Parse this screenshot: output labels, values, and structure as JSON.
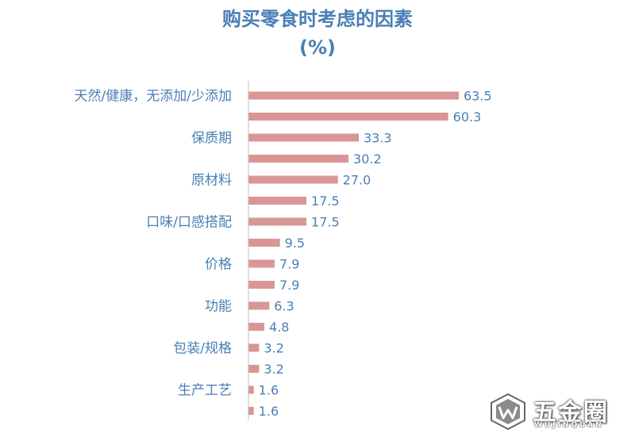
{
  "chart_data": {
    "type": "bar",
    "orientation": "horizontal",
    "title_lines": [
      "购买零食时考虑的因素",
      "(%)"
    ],
    "categories": [
      "天然/健康，无添加/少添加",
      "",
      "保质期",
      "",
      "原材料",
      "",
      "口味/口感搭配",
      "",
      "价格",
      "",
      "功能",
      "",
      "包装/规格",
      "",
      "生产工艺",
      ""
    ],
    "values": [
      63.5,
      60.3,
      33.3,
      30.2,
      27.0,
      17.5,
      17.5,
      9.5,
      7.9,
      7.9,
      6.3,
      4.8,
      3.2,
      3.2,
      1.6,
      1.6
    ],
    "value_labels": [
      "63.5",
      "60.3",
      "33.3",
      "30.2",
      "27.0",
      "17.5",
      "17.5",
      "9.5",
      "7.9",
      "7.9",
      "6.3",
      "4.8",
      "3.2",
      "3.2",
      "1.6",
      "1.6"
    ],
    "xlim": [
      0,
      63.5
    ],
    "grid": false,
    "bar_color": "#d99694",
    "text_color": "#4a7fb5",
    "axis_color": "#bfbfbf"
  },
  "watermark": {
    "brand": "五金圈",
    "subtitle": "WUJINQUAN"
  }
}
